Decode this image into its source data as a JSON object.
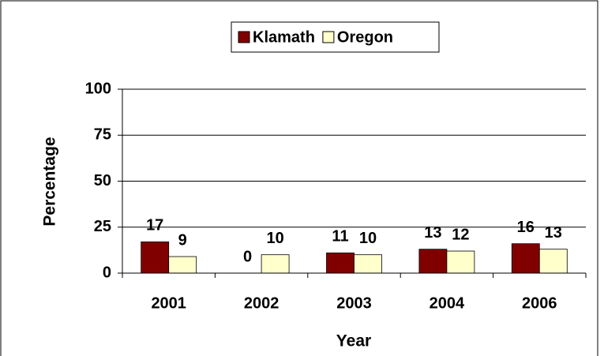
{
  "chart_data": {
    "type": "bar",
    "categories": [
      "2001",
      "2002",
      "2003",
      "2004",
      "2006"
    ],
    "series": [
      {
        "name": "Klamath",
        "color": "#800000",
        "values": [
          17,
          0,
          11,
          13,
          16
        ]
      },
      {
        "name": "Oregon",
        "color": "#FFFFCC",
        "values": [
          9,
          10,
          10,
          12,
          13
        ]
      }
    ],
    "y_label": "Percentage",
    "x_label": "Year",
    "ylim": [
      0,
      100
    ],
    "yticks": [
      0,
      25,
      50,
      75,
      100
    ],
    "grid": true,
    "legend": "top"
  }
}
